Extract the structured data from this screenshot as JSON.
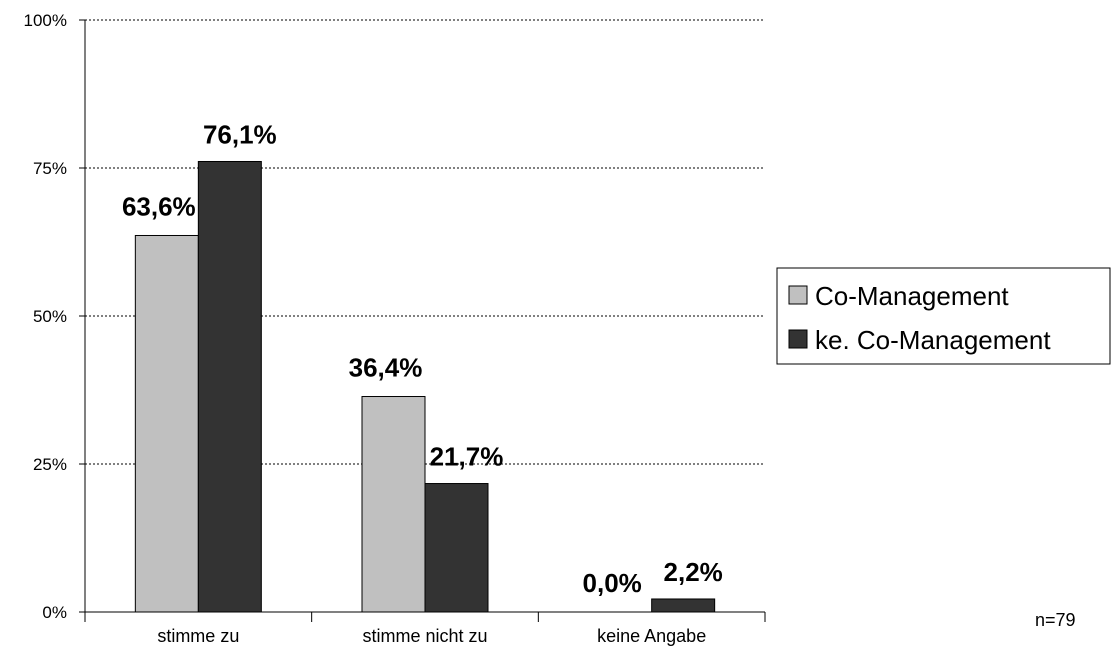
{
  "chart_data": {
    "type": "bar",
    "categories": [
      "stimme zu",
      "stimme nicht zu",
      "keine Angabe"
    ],
    "series": [
      {
        "name": "Co-Management",
        "values": [
          63.6,
          36.4,
          0.0
        ],
        "labels": [
          "63,6%",
          "36,4%",
          "0,0%"
        ],
        "color": "#c0c0c0"
      },
      {
        "name": "ke. Co-Management",
        "values": [
          76.1,
          21.7,
          2.2
        ],
        "labels": [
          "76,1%",
          "21,7%",
          "2,2%"
        ],
        "color": "#333333"
      }
    ],
    "yticks": [
      0,
      25,
      50,
      75,
      100
    ],
    "ytick_labels": [
      "0%",
      "25%",
      "50%",
      "75%",
      "100%"
    ],
    "ylim": [
      0,
      100
    ],
    "grid": true,
    "legend_position": "right",
    "annotation": "n=79"
  }
}
